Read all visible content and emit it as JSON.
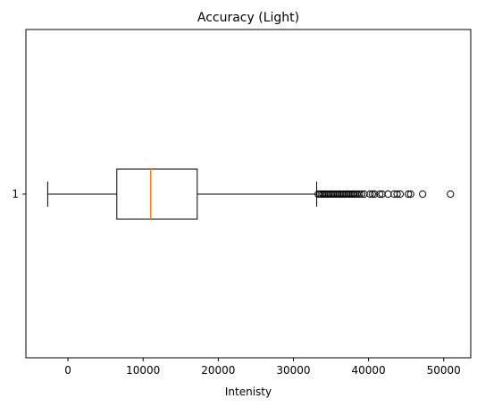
{
  "chart_data": {
    "type": "boxplot",
    "orientation": "horizontal",
    "title": "Accuracy (Light)",
    "xlabel": "Intenisty",
    "ylabel": "",
    "xlim": [
      -5600,
      53600
    ],
    "xticks": [
      0,
      10000,
      20000,
      30000,
      40000,
      50000
    ],
    "ytick_labels": [
      "1"
    ],
    "grid": false,
    "box": {
      "category": "1",
      "whisker_low": -2700,
      "q1": 6500,
      "median": 11000,
      "q3": 17200,
      "whisker_high": 33100,
      "outliers": [
        33300,
        33500,
        33700,
        33900,
        34100,
        34300,
        34500,
        34700,
        34900,
        35100,
        35300,
        35500,
        35700,
        35900,
        36100,
        36300,
        36500,
        36700,
        36900,
        37100,
        37300,
        37500,
        37700,
        37900,
        38100,
        38300,
        38500,
        38800,
        39100,
        39400,
        40200,
        40500,
        40800,
        41500,
        41800,
        42600,
        43400,
        43800,
        44200,
        45300,
        45600,
        47200,
        50900
      ]
    },
    "colors": {
      "box": "#000000",
      "median": "#ff7f0e",
      "outlier": "#000000"
    }
  }
}
